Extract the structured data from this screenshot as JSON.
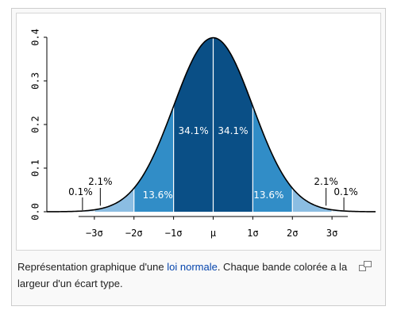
{
  "caption": {
    "text_before_link": "Représentation graphique d'une ",
    "link_text": "loi normale",
    "text_after_link": ". Chaque bande colorée a la largeur d'un écart type."
  },
  "icons": {
    "enlarge": "enlarge-icon"
  },
  "colors": {
    "band_1sd": "#0a4f86",
    "band_2sd": "#318dc7",
    "band_3sd": "#8bbde2",
    "band_tail": "#cfe3f3",
    "curve": "#000000"
  },
  "chart_data": {
    "type": "area",
    "distribution": "normal",
    "mean": 0,
    "sd": 1,
    "xlim": [
      -4.2,
      4.1
    ],
    "ylim": [
      0,
      0.4
    ],
    "x_tick_values": [
      -3,
      -2,
      -1,
      0,
      1,
      2,
      3
    ],
    "x_tick_labels": [
      "−3σ",
      "−2σ",
      "−1σ",
      "μ",
      "1σ",
      "2σ",
      "3σ"
    ],
    "y_tick_values": [
      0.0,
      0.1,
      0.2,
      0.3,
      0.4
    ],
    "y_tick_labels": [
      "0.0",
      "0.1",
      "0.2",
      "0.3",
      "0.4"
    ],
    "grid": false,
    "bands": [
      {
        "from": -3,
        "to": -2,
        "percent": "2.1%",
        "tier": 3
      },
      {
        "from": -2,
        "to": -1,
        "percent": "13.6%",
        "tier": 2
      },
      {
        "from": -1,
        "to": 0,
        "percent": "34.1%",
        "tier": 1
      },
      {
        "from": 0,
        "to": 1,
        "percent": "34.1%",
        "tier": 1
      },
      {
        "from": 1,
        "to": 2,
        "percent": "13.6%",
        "tier": 2
      },
      {
        "from": 2,
        "to": 3,
        "percent": "2.1%",
        "tier": 3
      }
    ],
    "tails": [
      {
        "from": -4.2,
        "to": -3,
        "percent": "0.1%"
      },
      {
        "from": 3,
        "to": 4.1,
        "percent": "0.1%"
      }
    ]
  }
}
